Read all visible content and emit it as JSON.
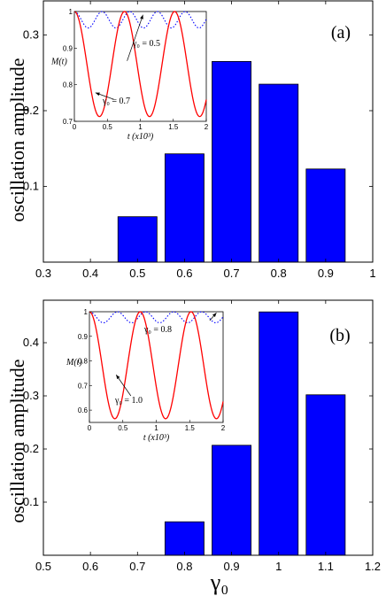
{
  "figure": {
    "xlabel": "γ₀",
    "ylabel": "oscillation amplitude"
  },
  "chart_data": [
    {
      "type": "bar",
      "panel_label": "(a)",
      "ylabel": "oscillation amplitude",
      "xlim": [
        0.3,
        1.0
      ],
      "ylim": [
        0.0,
        0.345
      ],
      "xticks": [
        "0.3",
        "0.4",
        "0.5",
        "0.6",
        "0.7",
        "0.8",
        "0.9",
        "1"
      ],
      "yticks": [
        "0.1",
        "0.2",
        "0.3"
      ],
      "categories": [
        0.5,
        0.6,
        0.7,
        0.8,
        0.9
      ],
      "values": [
        0.06,
        0.143,
        0.265,
        0.235,
        0.123
      ],
      "bar_color": "#0000ff",
      "inset": {
        "type": "line",
        "xlabel": "t (x10³)",
        "ylabel": "M(t)",
        "xlim": [
          0,
          2
        ],
        "ylim": [
          0.7,
          1.0
        ],
        "xticks": [
          "0",
          "0.5",
          "1",
          "1.5",
          "2"
        ],
        "yticks": [
          "0.7",
          "0.8",
          "0.9",
          "1"
        ],
        "series": [
          {
            "name": "γ₀ = 0.5",
            "color": "#0000ff",
            "style": "dotted",
            "min": 0.955,
            "period": 0.42
          },
          {
            "name": "γ₀ = 0.7",
            "color": "#ff0000",
            "style": "solid",
            "min": 0.713,
            "period": 0.76
          }
        ]
      }
    },
    {
      "type": "bar",
      "panel_label": "(b)",
      "ylabel": "oscillation amplitude",
      "xlim": [
        0.5,
        1.2
      ],
      "ylim": [
        0.0,
        0.48
      ],
      "xticks": [
        "0.5",
        "0.6",
        "0.7",
        "0.8",
        "0.9",
        "1",
        "1.1",
        "1.2"
      ],
      "yticks": [
        "0.1",
        "0.2",
        "0.3",
        "0.4"
      ],
      "categories": [
        0.8,
        0.9,
        1.0,
        1.1
      ],
      "values": [
        0.063,
        0.207,
        0.458,
        0.302
      ],
      "bar_color": "#0000ff",
      "inset": {
        "type": "line",
        "xlabel": "t (x10³)",
        "ylabel": "M(t)",
        "xlim": [
          0,
          2
        ],
        "ylim": [
          0.55,
          1.0
        ],
        "xticks": [
          "0",
          "0.5",
          "1",
          "1.5",
          "2"
        ],
        "yticks": [
          "0.6",
          "0.7",
          "0.8",
          "0.9",
          "1"
        ],
        "series": [
          {
            "name": "γ₀ = 0.8",
            "color": "#0000ff",
            "style": "dotted",
            "min": 0.955,
            "period": 0.42
          },
          {
            "name": "γ₀ = 1.0",
            "color": "#ff0000",
            "style": "solid",
            "min": 0.565,
            "period": 0.76
          }
        ]
      }
    }
  ]
}
